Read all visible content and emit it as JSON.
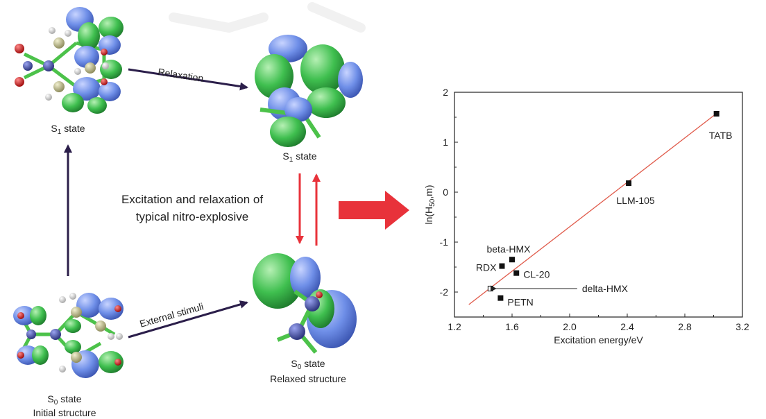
{
  "diagram": {
    "caption_line1": "Excitation and relaxation of",
    "caption_line2": "typical nitro-explosive",
    "arrow_relaxation": "Relaxation",
    "arrow_external": "External stimuli",
    "s1_left_prefix": "S",
    "s1_left_sub": "1",
    "s1_left_suffix": " state",
    "s1_right_prefix": "S",
    "s1_right_sub": "1",
    "s1_right_suffix": " state",
    "s0_initial_prefix": "S",
    "s0_initial_sub": "0",
    "s0_initial_suffix": " state",
    "s0_initial_sub_label": "Initial structure",
    "s0_relaxed_prefix": "S",
    "s0_relaxed_sub": "0",
    "s0_relaxed_suffix": " state",
    "s0_relaxed_sub_label": "Relaxed structure",
    "colors": {
      "orbital_green": "#3fbf4f",
      "orbital_blue": "#6f8fe8",
      "atom_nitrogen": "#4a56b0",
      "atom_oxygen": "#d21a1a",
      "atom_carbon": "#c9c79a",
      "atom_hydrogen": "#f2f2f2",
      "bond": "#4cc24a",
      "arrow_dark": "#2b1e4a",
      "arrow_red": "#e8323a",
      "fit_line": "#e05a4a"
    }
  },
  "chart_data": {
    "type": "scatter",
    "xlabel": "Excitation energy/eV",
    "ylabel_prefix": "ln(H",
    "ylabel_sub": "50",
    "ylabel_suffix": ",m)",
    "xlim": [
      1.2,
      3.2
    ],
    "ylim": [
      -2.5,
      2
    ],
    "xticks": [
      1.2,
      1.6,
      2.0,
      2.4,
      2.8,
      3.2
    ],
    "xtick_labels": [
      "1.2",
      "1.6",
      "2.0",
      "2.4",
      "2.8",
      "3.2"
    ],
    "yticks": [
      2,
      1,
      0,
      -1,
      -2
    ],
    "ytick_labels": [
      "2",
      "1",
      "0",
      "-1",
      "-2"
    ],
    "points": [
      {
        "label": "TATB",
        "x": 3.02,
        "y": 1.57,
        "filled": true
      },
      {
        "label": "LLM-105",
        "x": 2.41,
        "y": 0.18,
        "filled": true
      },
      {
        "label": "beta-HMX",
        "x": 1.6,
        "y": -1.35,
        "filled": true
      },
      {
        "label": "RDX",
        "x": 1.53,
        "y": -1.48,
        "filled": true
      },
      {
        "label": "CL-20",
        "x": 1.63,
        "y": -1.62,
        "filled": true
      },
      {
        "label": "delta-HMX",
        "x": 1.45,
        "y": -1.93,
        "filled": false
      },
      {
        "label": "PETN",
        "x": 1.52,
        "y": -2.12,
        "filled": true
      }
    ],
    "fit_line": {
      "x": [
        1.3,
        3.04
      ],
      "y": [
        -2.25,
        1.62
      ]
    },
    "grid": false,
    "legend": "none"
  }
}
